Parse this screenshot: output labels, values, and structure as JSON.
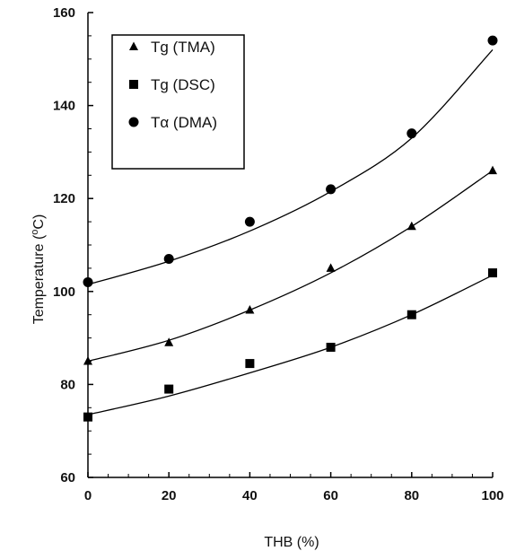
{
  "chart_data": {
    "type": "scatter",
    "xlabel": "THB  (%)",
    "ylabel_main": "Temperature  (",
    "ylabel_sup": "o",
    "ylabel_tail": "C)",
    "xlim": [
      0,
      100
    ],
    "ylim": [
      60,
      160
    ],
    "xticks": [
      "0",
      "20",
      "40",
      "60",
      "80",
      "100"
    ],
    "yticks": [
      "60",
      "80",
      "100",
      "120",
      "140",
      "160"
    ],
    "grid": false,
    "legend_position": "top-left",
    "series": [
      {
        "name": "Tg (TMA)",
        "marker": "triangle",
        "x": [
          0,
          20,
          40,
          60,
          80,
          100
        ],
        "y": [
          85,
          89,
          96,
          105,
          114,
          126
        ],
        "fit_y": [
          85,
          89.5,
          96,
          104,
          114,
          126
        ]
      },
      {
        "name": "Tg (DSC)",
        "marker": "square",
        "x": [
          0,
          20,
          40,
          60,
          80,
          100
        ],
        "y": [
          73,
          79,
          84.5,
          88,
          95,
          104
        ],
        "fit_y": [
          73.5,
          77.5,
          82.5,
          88,
          95,
          103.5
        ]
      },
      {
        "name": "Tα (DMA)",
        "marker": "circle",
        "x": [
          0,
          20,
          40,
          60,
          80,
          100
        ],
        "y": [
          102,
          107,
          115,
          122,
          134,
          154
        ],
        "fit_y": [
          101.5,
          106.5,
          113,
          121.5,
          133,
          152
        ]
      }
    ]
  }
}
